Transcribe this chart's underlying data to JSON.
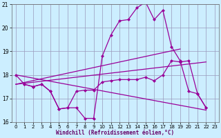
{
  "background_color": "#cceeff",
  "grid_color": "#9999bb",
  "line_color": "#990099",
  "xlabel": "Windchill (Refroidissement éolien,°C)",
  "xlim": [
    -0.5,
    23.5
  ],
  "ylim": [
    16,
    21
  ],
  "yticks": [
    16,
    17,
    18,
    19,
    20,
    21
  ],
  "xticks": [
    0,
    1,
    2,
    3,
    4,
    5,
    6,
    7,
    8,
    9,
    10,
    11,
    12,
    13,
    14,
    15,
    16,
    17,
    18,
    19,
    20,
    21,
    22,
    23
  ],
  "curve1_x": [
    0,
    1,
    2,
    3,
    4,
    5,
    6,
    7,
    8,
    9,
    10,
    11,
    12,
    13,
    14,
    15,
    16,
    17,
    18,
    19,
    20,
    21,
    22
  ],
  "curve1_y": [
    18.0,
    17.6,
    17.5,
    17.6,
    17.3,
    16.55,
    16.6,
    16.6,
    16.15,
    16.15,
    18.8,
    19.7,
    20.3,
    20.35,
    20.85,
    21.1,
    20.35,
    20.75,
    19.2,
    18.6,
    17.3,
    17.2,
    16.6
  ],
  "curve2_x": [
    1,
    2,
    3,
    4,
    5,
    6,
    7,
    8,
    9,
    10,
    11,
    12,
    13,
    14,
    15,
    16,
    17,
    18,
    19,
    20,
    21,
    22
  ],
  "curve2_y": [
    17.6,
    17.5,
    17.6,
    17.3,
    16.55,
    16.6,
    17.3,
    17.35,
    17.35,
    17.7,
    17.75,
    17.8,
    17.8,
    17.8,
    17.9,
    17.75,
    18.0,
    18.6,
    18.55,
    18.6,
    17.2,
    16.6
  ],
  "line1_x": [
    0,
    22
  ],
  "line1_y": [
    18.0,
    16.5
  ],
  "line2_x": [
    0,
    19
  ],
  "line2_y": [
    17.6,
    19.1
  ],
  "line3_x": [
    0,
    22
  ],
  "line3_y": [
    17.6,
    18.55
  ]
}
